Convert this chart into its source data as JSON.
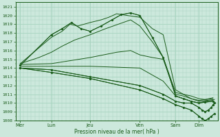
{
  "xlabel": "Pression niveau de la mer( hPa )",
  "ylim": [
    1008,
    1021.5
  ],
  "xlim": [
    0,
    130
  ],
  "yticks": [
    1008,
    1009,
    1010,
    1011,
    1012,
    1013,
    1014,
    1015,
    1016,
    1017,
    1018,
    1019,
    1020,
    1021
  ],
  "xtick_labels": [
    "Mer",
    "Lun",
    "Jeu",
    "Ven",
    "Sam",
    "Dim"
  ],
  "xtick_positions": [
    3,
    23,
    48,
    80,
    103,
    118
  ],
  "bg_color": "#cce8dc",
  "grid_color": "#a8d4c0",
  "line_color": "#1a5c1a",
  "lines": [
    {
      "x": [
        3,
        23,
        30,
        35,
        40,
        48,
        55,
        60,
        65,
        72,
        80,
        88,
        95,
        103,
        108,
        113,
        118,
        123,
        128
      ],
      "y": [
        1014.5,
        1017.5,
        1018.2,
        1019.0,
        1018.8,
        1019.2,
        1019.5,
        1019.8,
        1020.2,
        1020.0,
        1019.8,
        1018.5,
        1017.8,
        1011.5,
        1011.0,
        1010.5,
        1010.2,
        1010.3,
        1010.4
      ]
    },
    {
      "x": [
        3,
        23,
        30,
        36,
        42,
        48,
        55,
        62,
        68,
        74,
        80,
        88,
        95,
        103,
        108,
        113,
        118,
        122,
        127
      ],
      "y": [
        1014.3,
        1017.8,
        1018.5,
        1019.2,
        1018.5,
        1018.2,
        1018.8,
        1019.5,
        1020.1,
        1020.3,
        1020.0,
        1017.5,
        1015.2,
        1010.8,
        1010.5,
        1010.2,
        1010.0,
        1010.1,
        1010.2
      ]
    },
    {
      "x": [
        3,
        15,
        23,
        30,
        38,
        48,
        58,
        66,
        74,
        80,
        88,
        95,
        103,
        108,
        113,
        118,
        122,
        127
      ],
      "y": [
        1014.5,
        1015.2,
        1015.8,
        1016.5,
        1017.2,
        1017.8,
        1018.5,
        1019.0,
        1019.5,
        1018.8,
        1017.0,
        1015.2,
        1011.2,
        1011.0,
        1010.8,
        1010.5,
        1010.4,
        1010.6
      ]
    },
    {
      "x": [
        3,
        23,
        48,
        65,
        74,
        80,
        88,
        95,
        103,
        108,
        113,
        118,
        122,
        127
      ],
      "y": [
        1014.4,
        1014.5,
        1015.2,
        1015.8,
        1016.0,
        1015.5,
        1015.2,
        1015.0,
        1011.0,
        1010.8,
        1010.5,
        1010.3,
        1010.4,
        1010.5
      ]
    },
    {
      "x": [
        3,
        23,
        48,
        80,
        95,
        103,
        108,
        113,
        118,
        122,
        127
      ],
      "y": [
        1014.2,
        1014.2,
        1014.2,
        1014.0,
        1012.5,
        1010.8,
        1010.5,
        1010.2,
        1010.0,
        1010.2,
        1010.3
      ]
    },
    {
      "x": [
        3,
        23,
        48,
        80,
        95,
        103,
        108,
        113,
        118,
        120,
        122,
        124,
        126,
        127,
        128
      ],
      "y": [
        1014.0,
        1013.8,
        1013.0,
        1012.0,
        1011.0,
        1010.2,
        1010.0,
        1010.0,
        1009.5,
        1009.2,
        1009.0,
        1009.2,
        1009.5,
        1009.8,
        1010.0
      ]
    },
    {
      "x": [
        3,
        23,
        48,
        80,
        95,
        103,
        108,
        113,
        118,
        120,
        122,
        124,
        126,
        128
      ],
      "y": [
        1014.0,
        1013.5,
        1012.8,
        1011.5,
        1010.5,
        1009.8,
        1009.5,
        1009.2,
        1008.5,
        1008.2,
        1008.0,
        1008.2,
        1008.5,
        1008.8
      ]
    }
  ],
  "markers": [
    {
      "x": [
        3,
        23,
        30,
        36,
        48,
        65,
        80,
        88,
        95,
        103,
        108,
        113,
        118
      ],
      "y": [
        1014.5,
        1017.8,
        1018.5,
        1019.2,
        1018.2,
        1020.1,
        1020.0,
        1017.5,
        1015.2,
        1010.8,
        1010.5,
        1010.2,
        1010.0
      ]
    },
    {
      "x": [
        3,
        80,
        88,
        95,
        103,
        108,
        113,
        118,
        122,
        124,
        126,
        127,
        128
      ],
      "y": [
        1014.0,
        1012.0,
        1011.0,
        1010.5,
        1009.8,
        1009.5,
        1009.2,
        1008.5,
        1008.2,
        1008.0,
        1008.2,
        1008.5,
        1008.8
      ]
    }
  ]
}
